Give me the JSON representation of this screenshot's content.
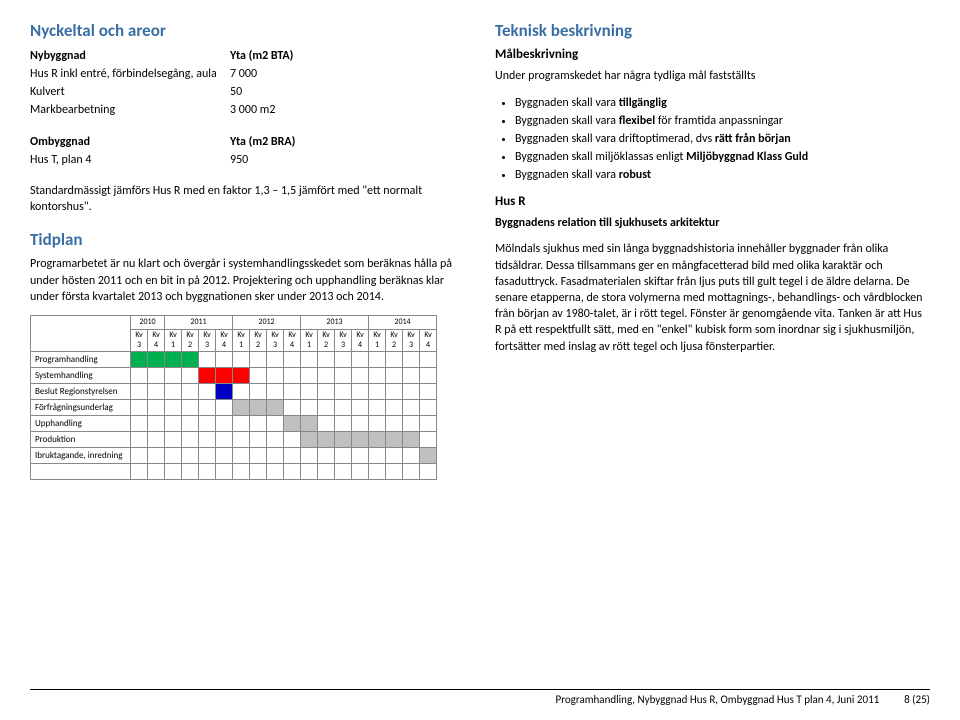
{
  "left": {
    "h_nyckeltal": "Nyckeltal och areor",
    "tbl1": {
      "h_ny": "Nybyggnad",
      "h_yta_bta": "Yta (m2 BTA)",
      "r1k": "Hus R inkl entré, förbindelsegång, aula",
      "r1v": "7 000",
      "r2k": "Kulvert",
      "r2v": "50",
      "r3k": "Markbearbetning",
      "r3v": "3 000  m2"
    },
    "tbl2": {
      "h_om": "Ombyggnad",
      "h_yta_bra": "Yta (m2 BRA)",
      "r1k": "Hus T, plan 4",
      "r1v": "950"
    },
    "p_std": "Standardmässigt jämförs Hus R med en faktor 1,3 – 1,5 jämfört med \"ett normalt kontorshus\".",
    "h_tidplan": "Tidplan",
    "p_tidplan": "Programarbetet är nu klart och övergår i systemhandlingsskedet som beräknas hålla på under hösten 2011 och en bit in på 2012. Projektering och upphandling beräknas klar under första kvartalet 2013 och byggnationen sker under 2013 och 2014.",
    "gantt": {
      "years": [
        "2010",
        "2011",
        "2012",
        "2013",
        "2014"
      ],
      "year_spans": [
        2,
        4,
        4,
        4,
        4
      ],
      "quarters": [
        "Kv 3",
        "Kv 4",
        "Kv 1",
        "Kv 2",
        "Kv 3",
        "Kv 4",
        "Kv 1",
        "Kv 2",
        "Kv 3",
        "Kv 4",
        "Kv 1",
        "Kv 2",
        "Kv 3",
        "Kv 4",
        "Kv 1",
        "Kv 2",
        "Kv 3",
        "Kv 4"
      ],
      "row_labels": [
        "Programhandling",
        "Systemhandling",
        "Beslut Regionstyrelsen",
        "Förfrågningsunderlag",
        "Upphandling",
        "Produktion",
        "Ibruktagande, inredning",
        ""
      ],
      "bars": [
        {
          "row": 0,
          "start": 0,
          "end": 3,
          "color": "#00b050"
        },
        {
          "row": 1,
          "start": 4,
          "end": 6,
          "color": "#ff0000"
        },
        {
          "row": 2,
          "start": 5,
          "end": 5,
          "color": "#0000c0"
        },
        {
          "row": 3,
          "start": 6,
          "end": 8,
          "color": "#c0c0c0"
        },
        {
          "row": 4,
          "start": 9,
          "end": 10,
          "color": "#c0c0c0"
        },
        {
          "row": 5,
          "start": 10,
          "end": 16,
          "color": "#c0c0c0"
        },
        {
          "row": 6,
          "start": 17,
          "end": 17,
          "color": "#c0c0c0"
        }
      ],
      "border_color": "#888888",
      "cell_bg": "#ffffff"
    }
  },
  "right": {
    "h_tek": "Teknisk beskrivning",
    "h_mal": "Målbeskrivning",
    "p_intro": "Under programskedet har några tydliga mål fastställts",
    "bullets": [
      {
        "pre": "Byggnaden skall vara ",
        "b": "tillgänglig",
        "post": ""
      },
      {
        "pre": "Byggnaden skall vara ",
        "b": "flexibel",
        "post": " för framtida anpassningar"
      },
      {
        "pre": "Byggnaden skall vara driftoptimerad, dvs ",
        "b": "rätt från början",
        "post": ""
      },
      {
        "pre": "Byggnaden skall miljöklassas enligt ",
        "b": "Miljöbyggnad Klass Guld",
        "post": ""
      },
      {
        "pre": "Byggnaden skall vara ",
        "b": "robust",
        "post": ""
      }
    ],
    "h_husr": "Hus R",
    "h_rel": "Byggnadens relation till sjukhusets arkitektur",
    "p_body": "Mölndals sjukhus med sin långa byggnadshistoria innehåller byggnader från olika tidsåldrar. Dessa tillsammans ger en mångfacetterad bild med olika karaktär och fasaduttryck. Fasadmaterialen skiftar från ljus puts till gult tegel i de äldre delarna. De senare etapperna, de stora volymerna med mottagnings-, behandlings- och vårdblocken från början av 1980-talet, är i rött tegel. Fönster är genomgående vita. Tanken är att Hus R på ett respektfullt sätt, med en \"enkel\" kubisk form som inordnar sig i sjukhusmiljön, fortsätter med inslag av rött tegel och ljusa fönsterpartier."
  },
  "footer": {
    "text": "Programhandling, Nybyggnad Hus R, Ombyggnad Hus T plan 4, Juni 2011",
    "page": "8 (25)"
  }
}
